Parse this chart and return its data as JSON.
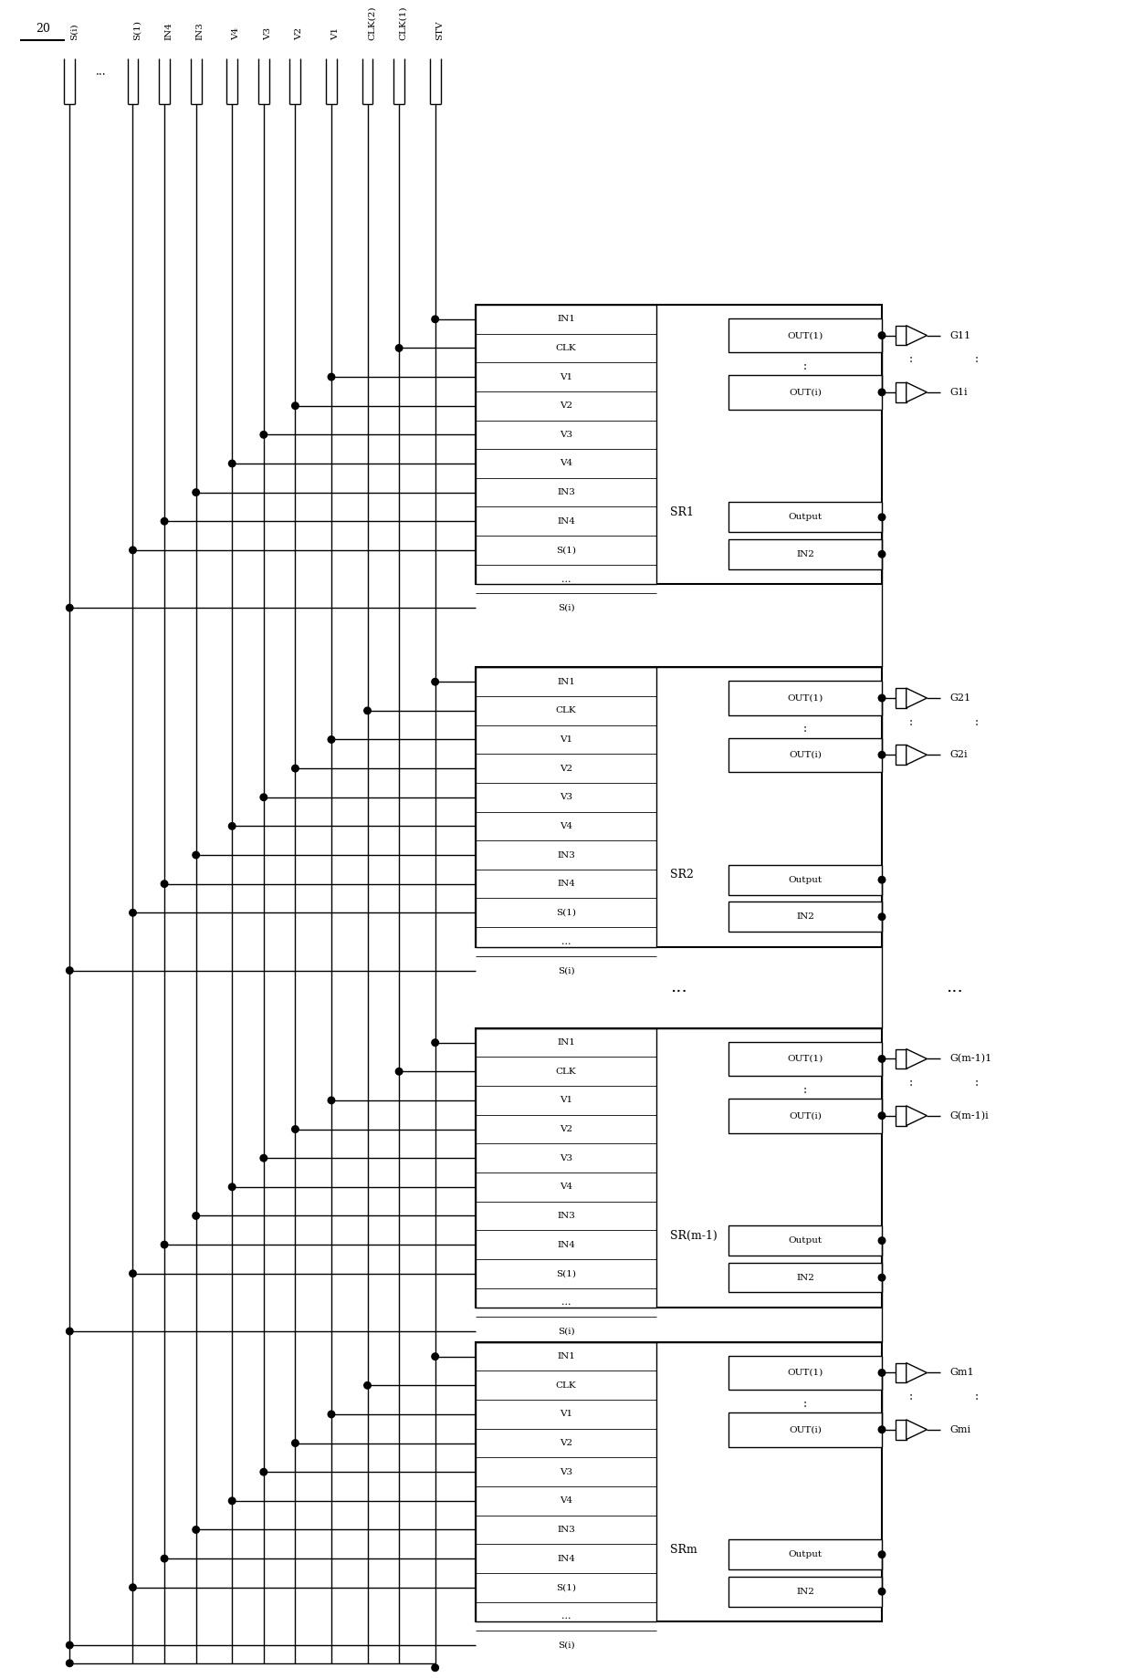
{
  "fig_width": 12.4,
  "fig_height": 18.39,
  "dpi": 100,
  "bg_color": "#ffffff",
  "label_20": "20",
  "sig_labels": [
    "S(i)",
    "...",
    "S(1)",
    "IN4",
    "IN3",
    "V4",
    "V3",
    "V2",
    "V1",
    "CLK(2)",
    "CLK(1)",
    "STV"
  ],
  "pin_names": [
    "IN1",
    "CLK",
    "V1",
    "V2",
    "V3",
    "V4",
    "IN3",
    "IN4",
    "S(1)",
    "...",
    "S(i)"
  ],
  "sr_names": [
    "SR1",
    "SR2",
    "SR(m-1)",
    "SRm"
  ],
  "gate_labels": [
    [
      "G11",
      "G1i"
    ],
    [
      "G21",
      "G2i"
    ],
    [
      "G(m-1)1",
      "G(m-1)i"
    ],
    [
      "Gm1",
      "Gmi"
    ]
  ]
}
